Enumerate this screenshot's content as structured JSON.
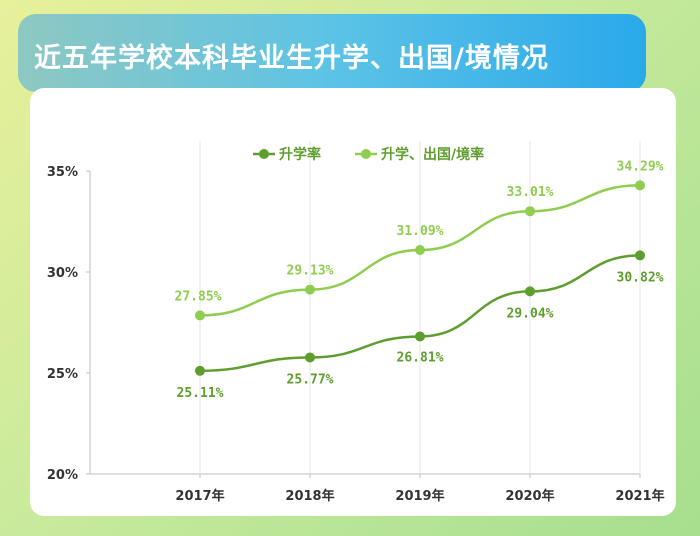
{
  "page": {
    "title": "近五年学校本科毕业生升学、出国/境情况"
  },
  "chart_data": {
    "type": "line",
    "title": "近五年学校本科毕业生升学、出国/境情况",
    "categories": [
      "2017年",
      "2018年",
      "2019年",
      "2020年",
      "2021年"
    ],
    "series": [
      {
        "name": "升学率",
        "values": [
          25.11,
          25.77,
          26.81,
          29.04,
          30.82
        ],
        "labels": [
          "25.11%",
          "25.77%",
          "26.81%",
          "29.04%",
          "30.82%"
        ],
        "color": "#5e9e2e"
      },
      {
        "name": "升学、出国/境率",
        "values": [
          27.85,
          29.13,
          31.09,
          33.01,
          34.29
        ],
        "labels": [
          "27.85%",
          "29.13%",
          "31.09%",
          "33.01%",
          "34.29%"
        ],
        "color": "#8fcd4f"
      }
    ],
    "ylim": [
      20,
      35
    ],
    "yticks": [
      "20%",
      "25%",
      "30%",
      "35%"
    ],
    "ytick_values": [
      20,
      25,
      30,
      35
    ],
    "grid": "vertical",
    "legend": "top-center"
  }
}
